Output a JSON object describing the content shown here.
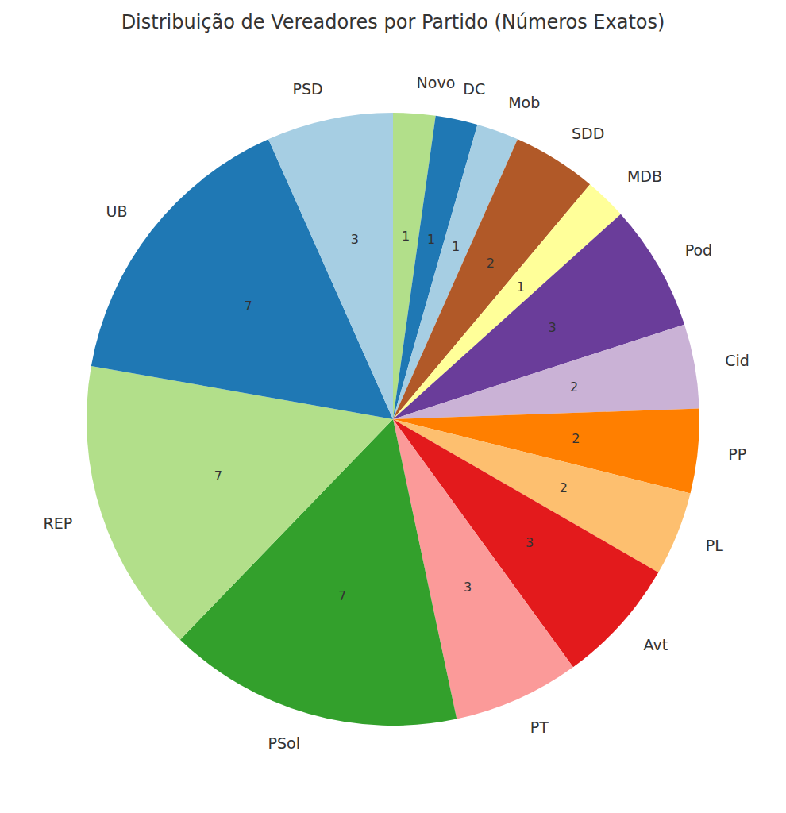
{
  "chart_data": {
    "type": "pie",
    "title": "Distribuição de Vereadores por Partido (Números Exatos)",
    "categories": [
      "Novo",
      "DC",
      "Mob",
      "SDD",
      "MDB",
      "Pod",
      "Cid",
      "PP",
      "PL",
      "Avt",
      "PT",
      "PSol",
      "REP",
      "UB",
      "PSD"
    ],
    "values": [
      1,
      1,
      1,
      2,
      1,
      3,
      2,
      2,
      2,
      3,
      3,
      7,
      7,
      7,
      3
    ],
    "colors": [
      "#b2df8a",
      "#1f78b4",
      "#a6cee3",
      "#b15928",
      "#ffff99",
      "#6a3d9a",
      "#cab2d6",
      "#ff7f00",
      "#fdbf6f",
      "#e31a1c",
      "#fb9a99",
      "#33a02c",
      "#b2df8a",
      "#1f78b4",
      "#a6cee3"
    ],
    "data_labels": true
  }
}
